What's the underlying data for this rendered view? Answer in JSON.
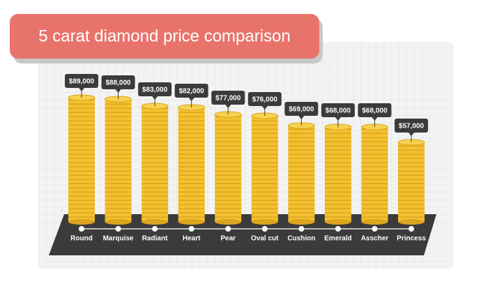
{
  "chart_data": {
    "type": "bar",
    "title": "5 carat diamond price comparison",
    "categories": [
      "Round",
      "Marquise",
      "Radiant",
      "Heart",
      "Pear",
      "Oval cut",
      "Cushion",
      "Emerald",
      "Asscher",
      "Princess"
    ],
    "values": [
      89000,
      88000,
      83000,
      82000,
      77000,
      76000,
      69000,
      68000,
      68000,
      57000
    ],
    "value_labels": [
      "$89,000",
      "$88,000",
      "$83,000",
      "$82,000",
      "$77,000",
      "$76,000",
      "$69,000",
      "$68,000",
      "$68,000",
      "$57,000"
    ],
    "color": "#f3c12f"
  }
}
